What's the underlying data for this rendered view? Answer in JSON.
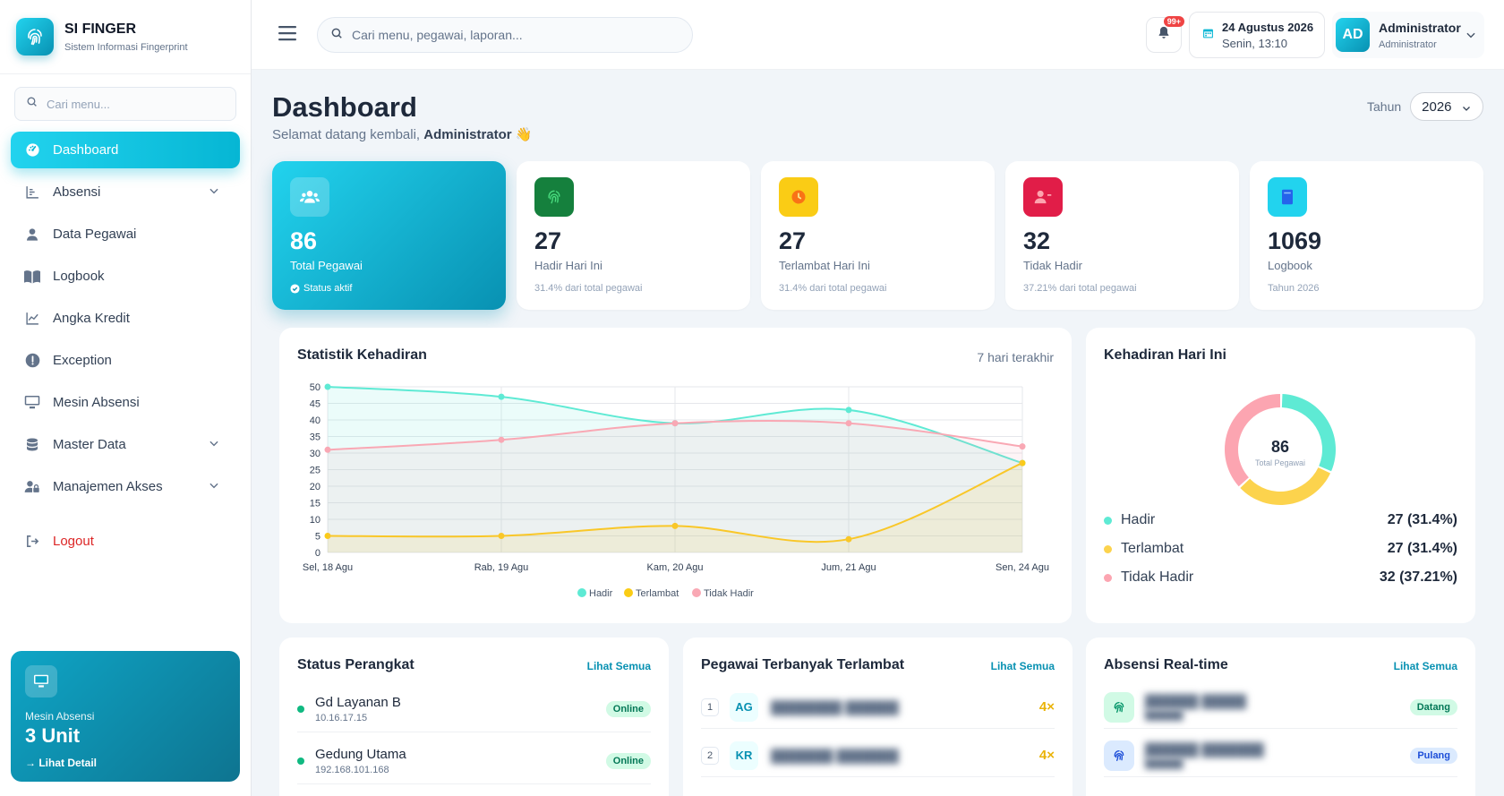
{
  "brand": {
    "title": "SI FINGER",
    "subtitle": "Sistem Informasi Fingerprint"
  },
  "sidebar": {
    "search_placeholder": "Cari menu...",
    "items": [
      {
        "label": "Dashboard",
        "icon": "dashboard-icon",
        "active": true
      },
      {
        "label": "Absensi",
        "icon": "chart-bar-icon",
        "expandable": true
      },
      {
        "label": "Data Pegawai",
        "icon": "user-icon"
      },
      {
        "label": "Logbook",
        "icon": "book-icon"
      },
      {
        "label": "Angka Kredit",
        "icon": "line-chart-icon"
      },
      {
        "label": "Exception",
        "icon": "alert-icon"
      },
      {
        "label": "Mesin Absensi",
        "icon": "monitor-icon"
      },
      {
        "label": "Master Data",
        "icon": "database-icon",
        "expandable": true
      },
      {
        "label": "Manajemen Akses",
        "icon": "user-lock-icon",
        "expandable": true
      }
    ],
    "logout": "Logout",
    "promo": {
      "label": "Mesin Absensi",
      "value": "3 Unit",
      "link": "→ Lihat Detail"
    }
  },
  "header": {
    "search_placeholder": "Cari menu, pegawai, laporan...",
    "notif_badge": "99+",
    "date": "24 Agustus 2026",
    "time": "Senin, 13:10",
    "avatar_initials": "AD",
    "user_name": "Administrator",
    "user_role": "Administrator"
  },
  "page": {
    "title": "Dashboard",
    "subtitle_prefix": "Selamat datang kembali,",
    "subtitle_name": "Administrator",
    "subtitle_emoji": "👋",
    "year_label": "Tahun",
    "year_value": "2026"
  },
  "stats": [
    {
      "value": "86",
      "label": "Total Pegawai",
      "note": "Status aktif",
      "color": "#22d3ee"
    },
    {
      "value": "27",
      "label": "Hadir Hari Ini",
      "note": "31.4% dari total pegawai",
      "color": "#15803d"
    },
    {
      "value": "27",
      "label": "Terlambat Hari Ini",
      "note": "31.4% dari total pegawai",
      "color": "#facc15"
    },
    {
      "value": "32",
      "label": "Tidak Hadir",
      "note": "37.21% dari total pegawai",
      "color": "#ef4444"
    },
    {
      "value": "1069",
      "label": "Logbook",
      "note": "Tahun 2026",
      "color": "#22d3ee"
    }
  ],
  "statistik": {
    "title": "Statistik Kehadiran",
    "range": "7 hari terakhir",
    "chart_data": {
      "type": "line",
      "categories": [
        "Sel, 18 Agu",
        "Rab, 19 Agu",
        "Kam, 20 Agu",
        "Jum, 21 Agu",
        "Sen, 24 Agu"
      ],
      "series": [
        {
          "name": "Hadir",
          "color": "#5eead4",
          "values": [
            50,
            47,
            39,
            43,
            27
          ]
        },
        {
          "name": "Terlambat",
          "color": "#facc15",
          "values": [
            5,
            5,
            8,
            4,
            27
          ]
        },
        {
          "name": "Tidak Hadir",
          "color": "#f9a8b4",
          "values": [
            31,
            34,
            39,
            39,
            32
          ]
        }
      ],
      "ylim": [
        0,
        50
      ],
      "yticks": [
        0,
        5,
        10,
        15,
        20,
        25,
        30,
        35,
        40,
        45,
        50
      ],
      "grid": true,
      "legend": "bottom"
    }
  },
  "kehadiran": {
    "title": "Kehadiran Hari Ini",
    "center_value": "86",
    "center_label": "Total Pegawai",
    "chart_data": {
      "type": "pie",
      "labels": [
        "Hadir",
        "Terlambat",
        "Tidak Hadir"
      ],
      "values": [
        27,
        27,
        32
      ],
      "colors": [
        "#5eead4",
        "#fcd34d",
        "#fca5b1"
      ]
    },
    "rows": [
      {
        "label": "Hadir",
        "value": "27 (31.4%)",
        "color": "#5eead4"
      },
      {
        "label": "Terlambat",
        "value": "27 (31.4%)",
        "color": "#fcd34d"
      },
      {
        "label": "Tidak Hadir",
        "value": "32 (37.21%)",
        "color": "#fca5b1"
      }
    ]
  },
  "perangkat": {
    "title": "Status Perangkat",
    "link": "Lihat Semua",
    "rows": [
      {
        "name": "Gd Layanan B",
        "ip": "10.16.17.15",
        "status": "Online"
      },
      {
        "name": "Gedung Utama",
        "ip": "192.168.101.168",
        "status": "Online"
      }
    ]
  },
  "terlambat": {
    "title": "Pegawai Terbanyak Terlambat",
    "link": "Lihat Semua",
    "rows": [
      {
        "rank": "1",
        "initials": "AG",
        "count": "4×"
      },
      {
        "rank": "2",
        "initials": "KR",
        "count": "4×"
      }
    ]
  },
  "realtime": {
    "title": "Absensi Real-time",
    "link": "Lihat Semua",
    "rows": [
      {
        "status": "Datang",
        "color": "#10b981"
      },
      {
        "status": "Pulang",
        "color": "#1d4ed8"
      }
    ]
  }
}
